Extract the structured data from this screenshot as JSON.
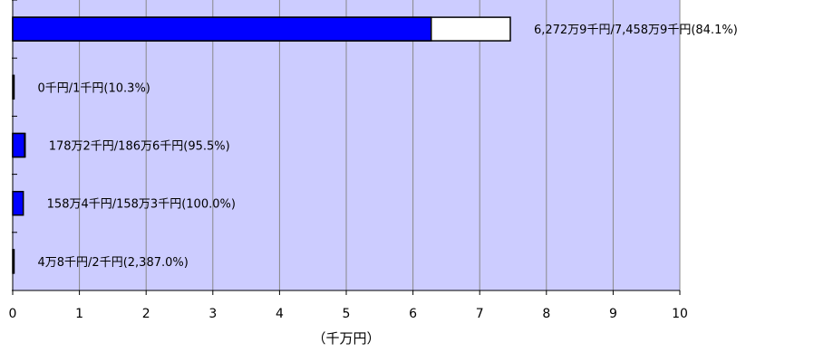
{
  "chart_data": {
    "type": "bar",
    "orientation": "horizontal",
    "xlabel": "（千万円）",
    "xlim": [
      0,
      10
    ],
    "x_ticks": [
      "0",
      "1",
      "2",
      "3",
      "4",
      "5",
      "6",
      "7",
      "8",
      "9",
      "10"
    ],
    "grid": true,
    "plot_background": "#ccccff",
    "series": [
      {
        "role": "actual",
        "color": "#0000ff",
        "values": [
          6.2729,
          0.0,
          0.1782,
          0.1584,
          0.0048
        ]
      },
      {
        "role": "budget",
        "color": "#ffffff",
        "values": [
          7.4589,
          0.0001,
          0.1866,
          0.1583,
          0.0002
        ]
      }
    ],
    "data_labels": [
      "6,272万9千円/7,458万9千円(84.1%)",
      "0千円/1千円(10.3%)",
      "178万2千円/186万6千円(95.5%)",
      "158万4千円/158万3千円(100.0%)",
      "4万8千円/2千円(2,387.0%)"
    ]
  }
}
